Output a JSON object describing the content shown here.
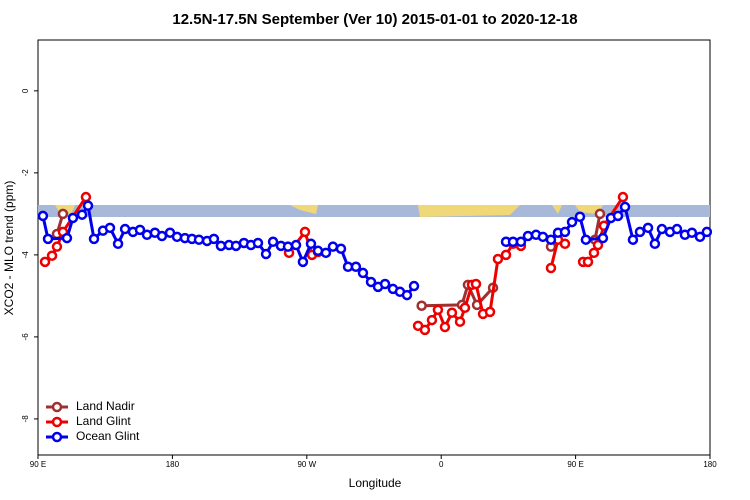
{
  "chart_data": {
    "type": "line",
    "title": "12.5N-17.5N September (Ver 10)   2015-01-01 to 2020-12-18",
    "x_label": "Longitude",
    "y_label": "XCO2 - MLO trend (ppm)",
    "xlim": [
      90,
      540
    ],
    "ylim": [
      -8.88,
      1.24
    ],
    "xticks": [
      {
        "value": 90,
        "label": "90 E"
      },
      180,
      {
        "value": 270,
        "label": "90 W"
      },
      {
        "value": 360,
        "label": "0"
      },
      {
        "value": 450,
        "label": "90 E"
      },
      {
        "value": 540,
        "label": "180"
      }
    ],
    "yticks": [
      0,
      -2,
      -4,
      -6,
      -8
    ],
    "legend": "bottom-left",
    "series": [
      {
        "name": "Land Nadir",
        "color": "#a03030",
        "x": [
          102.7,
          106.7,
          300,
          346.9,
          373.9,
          377.9,
          384.0,
          394.7,
          420,
          433.5,
          438.2,
          455,
          463.0,
          466.3
        ],
        "values": [
          -3.49,
          -3.0,
          null,
          -5.24,
          -5.22,
          -4.73,
          -5.22,
          -4.8,
          null,
          -3.8,
          -3.63,
          null,
          -3.63,
          -3.0
        ]
      },
      {
        "name": "Land Glint",
        "color": "#ee0000",
        "x": [
          94.7,
          99.4,
          102.7,
          106.7,
          122.1,
          200,
          258.1,
          268.8,
          273.5,
          277.5,
          300,
          344.5,
          349.1,
          353.8,
          357.8,
          362.5,
          367.2,
          372.6,
          375.9,
          380.6,
          383.3,
          388.0,
          392.7,
          398.0,
          403.4,
          408.1,
          413.4,
          430,
          433.5,
          438.2,
          442.9,
          450,
          455.0,
          458.3,
          462.3,
          465.0,
          469.0,
          481.7
        ],
        "values": [
          -4.17,
          -4.02,
          -3.8,
          -3.44,
          -2.59,
          null,
          -3.95,
          -3.44,
          -4.0,
          -3.93,
          null,
          -5.73,
          -5.83,
          -5.59,
          -5.34,
          -5.76,
          -5.41,
          -5.63,
          -5.29,
          -4.73,
          -4.71,
          -5.44,
          -5.39,
          -4.1,
          -4.0,
          -3.73,
          -3.78,
          null,
          -4.32,
          -3.63,
          -3.73,
          null,
          -4.17,
          -4.17,
          -3.95,
          -3.76,
          -3.29,
          -2.59
        ]
      },
      {
        "name": "Ocean Glint",
        "color": "#0000ee",
        "x": [
          93.3,
          96.7,
          109.4,
          113.4,
          119.5,
          123.5,
          127.5,
          133.5,
          138.2,
          143.6,
          148.3,
          153.6,
          158.3,
          163.0,
          168.3,
          173.0,
          178.4,
          183.1,
          188.4,
          193.1,
          197.8,
          203.2,
          207.8,
          212.5,
          217.9,
          222.6,
          227.9,
          232.6,
          237.3,
          242.7,
          247.4,
          252.7,
          257.4,
          262.8,
          267.4,
          272.8,
          277.5,
          282.8,
          287.5,
          292.9,
          297.6,
          302.9,
          307.6,
          313.0,
          317.7,
          322.4,
          327.7,
          332.4,
          337.1,
          341.8,
          350,
          403.4,
          408.1,
          413.4,
          418.1,
          423.5,
          428.1,
          433.5,
          438.2,
          442.9,
          447.6,
          452.9,
          456.9,
          468.3,
          473.7,
          478.4,
          483.1,
          488.4,
          493.1,
          498.5,
          503.1,
          507.8,
          513.2,
          517.9,
          523.2,
          527.9,
          533.3,
          537.9
        ],
        "values": [
          -3.05,
          -3.61,
          -3.59,
          -3.1,
          -3.02,
          -2.8,
          -3.61,
          -3.41,
          -3.34,
          -3.73,
          -3.37,
          -3.44,
          -3.39,
          -3.51,
          -3.46,
          -3.54,
          -3.46,
          -3.56,
          -3.59,
          -3.61,
          -3.63,
          -3.66,
          -3.61,
          -3.78,
          -3.76,
          -3.78,
          -3.71,
          -3.76,
          -3.71,
          -3.98,
          -3.68,
          -3.78,
          -3.8,
          -3.76,
          -4.17,
          -3.73,
          -3.9,
          -3.95,
          -3.8,
          -3.85,
          -4.29,
          -4.29,
          -4.44,
          -4.66,
          -4.78,
          -4.71,
          -4.83,
          -4.9,
          -4.98,
          -4.76,
          null,
          -3.68,
          -3.68,
          -3.68,
          -3.54,
          -3.51,
          -3.56,
          -3.63,
          -3.46,
          -3.44,
          -3.2,
          -3.07,
          -3.63,
          -3.59,
          -3.1,
          -3.05,
          -2.83,
          -3.63,
          -3.44,
          -3.34,
          -3.73,
          -3.37,
          -3.44,
          -3.37,
          -3.51,
          -3.46,
          -3.56,
          -3.44
        ]
      }
    ]
  }
}
